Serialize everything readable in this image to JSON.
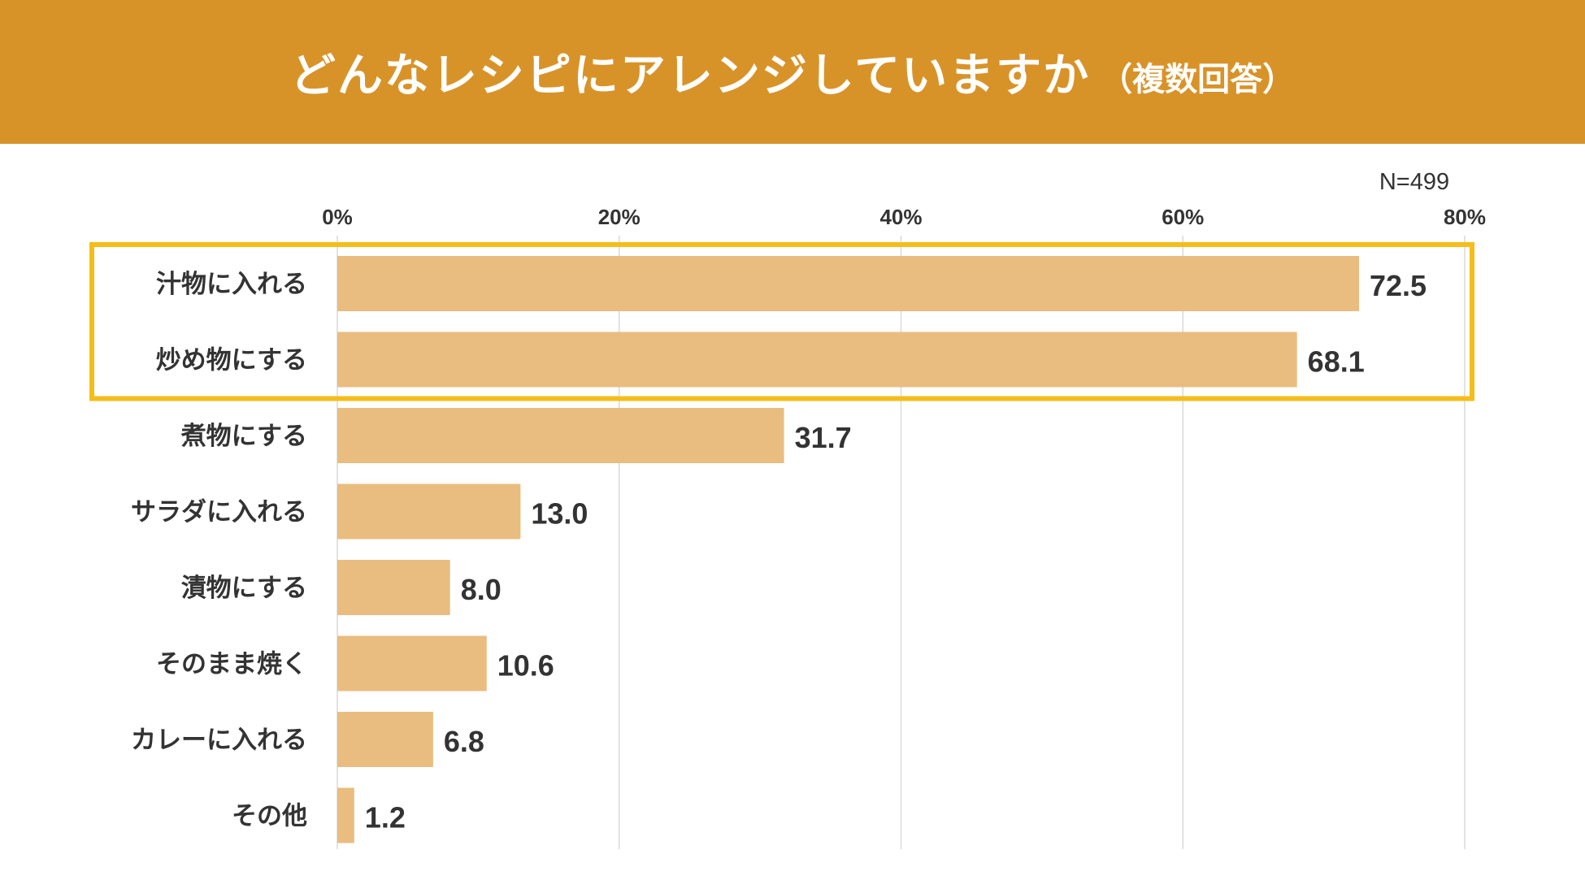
{
  "header": {
    "title": "どんなレシピにアレンジしていますか",
    "subtitle": "（複数回答）"
  },
  "sample_size": "N=499",
  "colors": {
    "header_bg": "#d89328",
    "bar": "#e9bd7f",
    "highlight_border": "#f5bd1a",
    "grid": "#d9d9d9"
  },
  "chart_data": {
    "type": "bar",
    "orientation": "horizontal",
    "xlim": [
      0,
      80
    ],
    "ticks": [
      "0%",
      "20%",
      "40%",
      "60%",
      "80%"
    ],
    "tick_values": [
      0,
      20,
      40,
      60,
      80
    ],
    "grid": true,
    "categories": [
      "汁物に入れる",
      "炒め物にする",
      "煮物にする",
      "サラダに入れる",
      "漬物にする",
      "そのまま焼く",
      "カレーに入れる",
      "その他"
    ],
    "values": [
      72.5,
      68.1,
      31.7,
      13.0,
      8.0,
      10.6,
      6.8,
      1.2
    ],
    "value_labels": [
      "72.5",
      "68.1",
      "31.7",
      "13.0",
      "8.0",
      "10.6",
      "6.8",
      "1.2"
    ],
    "highlighted_categories": [
      0,
      1
    ]
  }
}
